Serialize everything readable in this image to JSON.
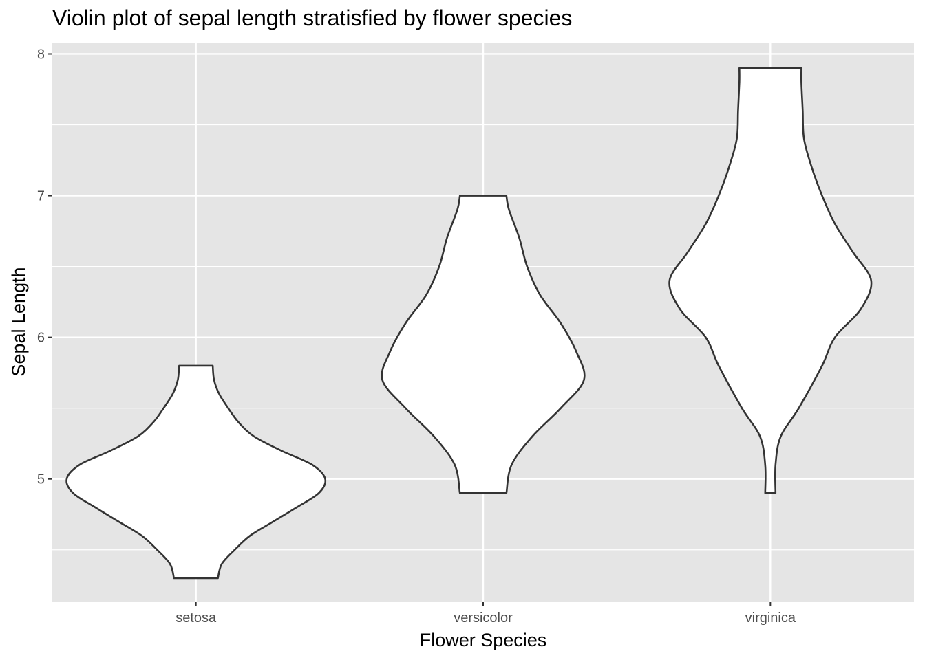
{
  "chart_data": {
    "type": "violin",
    "title": "Violin plot of sepal length stratisfied by flower species",
    "xlabel": "Flower Species",
    "ylabel": "Sepal Length",
    "categories": [
      "setosa",
      "versicolor",
      "virginica"
    ],
    "y_ticks": [
      "5",
      "6",
      "7",
      "8"
    ],
    "ylim": [
      4.13,
      8.08
    ],
    "grid": true,
    "colors": {
      "panel": "#e5e5e5",
      "grid": "#ffffff",
      "violin_fill": "#ffffff",
      "violin_stroke": "#333333",
      "tick_text": "#4d4d4d"
    },
    "violins": [
      {
        "category": "setosa",
        "min": 4.3,
        "max": 5.8,
        "density": [
          [
            4.3,
            0.17
          ],
          [
            4.4,
            0.2
          ],
          [
            4.5,
            0.3
          ],
          [
            4.6,
            0.42
          ],
          [
            4.7,
            0.6
          ],
          [
            4.8,
            0.78
          ],
          [
            4.9,
            0.95
          ],
          [
            5.0,
            1.0
          ],
          [
            5.1,
            0.9
          ],
          [
            5.2,
            0.66
          ],
          [
            5.3,
            0.45
          ],
          [
            5.4,
            0.33
          ],
          [
            5.5,
            0.25
          ],
          [
            5.6,
            0.18
          ],
          [
            5.7,
            0.14
          ],
          [
            5.8,
            0.13
          ]
        ]
      },
      {
        "category": "versicolor",
        "min": 4.9,
        "max": 7.0,
        "density": [
          [
            4.9,
            0.18
          ],
          [
            5.1,
            0.22
          ],
          [
            5.3,
            0.38
          ],
          [
            5.5,
            0.6
          ],
          [
            5.7,
            0.78
          ],
          [
            5.9,
            0.72
          ],
          [
            6.1,
            0.6
          ],
          [
            6.3,
            0.44
          ],
          [
            6.5,
            0.34
          ],
          [
            6.7,
            0.28
          ],
          [
            6.9,
            0.2
          ],
          [
            7.0,
            0.18
          ]
        ]
      },
      {
        "category": "virginica",
        "min": 4.9,
        "max": 7.9,
        "density": [
          [
            4.9,
            0.04
          ],
          [
            5.1,
            0.04
          ],
          [
            5.3,
            0.08
          ],
          [
            5.5,
            0.22
          ],
          [
            5.8,
            0.4
          ],
          [
            6.0,
            0.5
          ],
          [
            6.2,
            0.7
          ],
          [
            6.4,
            0.78
          ],
          [
            6.6,
            0.64
          ],
          [
            6.8,
            0.5
          ],
          [
            7.0,
            0.4
          ],
          [
            7.2,
            0.32
          ],
          [
            7.4,
            0.26
          ],
          [
            7.6,
            0.25
          ],
          [
            7.8,
            0.24
          ],
          [
            7.9,
            0.24
          ]
        ]
      }
    ]
  }
}
